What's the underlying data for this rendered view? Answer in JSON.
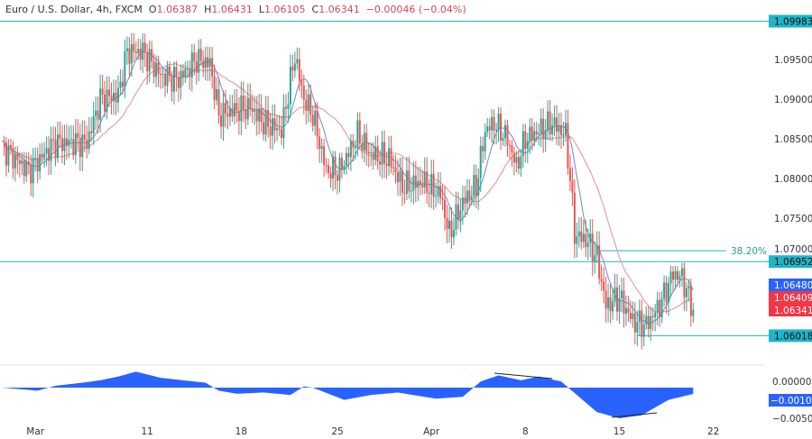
{
  "header": {
    "symbol": "Euro / U.S. Dollar, 4h, FXCM",
    "open_label": "O",
    "open": "1.06387",
    "high_label": "H",
    "high": "1.06431",
    "low_label": "L",
    "low": "1.06105",
    "close_label": "C",
    "close": "1.06341",
    "change": "−0.00046 (−0.04%)"
  },
  "colors": {
    "up": "#26a69a",
    "down": "#ef5350",
    "line": "#1fb5c9",
    "osc": "#2962ff",
    "ma_fast": "#6a8cc7",
    "ma_slow": "#e3a1a1"
  },
  "chart_data": {
    "type": "candlestick",
    "price_axis": {
      "ticks": [
        "1.09500",
        "1.09000",
        "1.08500",
        "1.08000",
        "1.07500",
        "1.07000"
      ],
      "range": [
        1.0585,
        1.1018
      ]
    },
    "x_ticks": [
      {
        "bar": 15,
        "label": "Mar"
      },
      {
        "bar": 65,
        "label": "11"
      },
      {
        "bar": 107,
        "label": "18"
      },
      {
        "bar": 150,
        "label": "25"
      },
      {
        "bar": 192,
        "label": "Apr"
      },
      {
        "bar": 234,
        "label": "8"
      },
      {
        "bar": 276,
        "label": "15"
      },
      {
        "bar": 318,
        "label": "22"
      }
    ],
    "close_keypoints": [
      [
        0,
        1.084
      ],
      [
        12,
        1.081
      ],
      [
        24,
        1.0845
      ],
      [
        38,
        1.0845
      ],
      [
        44,
        1.09
      ],
      [
        52,
        1.0905
      ],
      [
        56,
        1.096
      ],
      [
        63,
        1.096
      ],
      [
        71,
        1.093
      ],
      [
        79,
        1.0925
      ],
      [
        87,
        1.095
      ],
      [
        93,
        1.0945
      ],
      [
        97,
        1.088
      ],
      [
        103,
        1.0885
      ],
      [
        111,
        1.089
      ],
      [
        117,
        1.087
      ],
      [
        125,
        1.086
      ],
      [
        131,
        1.0955
      ],
      [
        135,
        1.09
      ],
      [
        139,
        1.088
      ],
      [
        145,
        1.081
      ],
      [
        151,
        1.081
      ],
      [
        159,
        1.0855
      ],
      [
        165,
        1.083
      ],
      [
        173,
        1.0825
      ],
      [
        179,
        1.079
      ],
      [
        188,
        1.0795
      ],
      [
        196,
        1.078
      ],
      [
        200,
        1.073
      ],
      [
        206,
        1.077
      ],
      [
        212,
        1.079
      ],
      [
        216,
        1.086
      ],
      [
        220,
        1.087
      ],
      [
        226,
        1.085
      ],
      [
        230,
        1.0815
      ],
      [
        234,
        1.085
      ],
      [
        240,
        1.086
      ],
      [
        246,
        1.087
      ],
      [
        252,
        1.0855
      ],
      [
        254,
        1.08
      ],
      [
        256,
        1.073
      ],
      [
        262,
        1.072
      ],
      [
        266,
        1.07
      ],
      [
        270,
        1.064
      ],
      [
        276,
        1.065
      ],
      [
        282,
        1.062
      ],
      [
        288,
        1.0615
      ],
      [
        294,
        1.064
      ],
      [
        300,
        1.068
      ],
      [
        304,
        1.0675
      ],
      [
        309,
        1.0634
      ]
    ],
    "levels": [
      {
        "price": 1.09983,
        "label": "1.09983"
      },
      {
        "price": 1.06952,
        "label": "1.06952"
      },
      {
        "price": 1.06018,
        "label": "1.06018"
      }
    ],
    "fib": {
      "label": "38.20%",
      "price": 1.0709
    },
    "price_tags": [
      {
        "label": "1.06480",
        "price": 1.0648,
        "color": "#2962ff"
      },
      {
        "label": "1.06409",
        "price": 1.06409,
        "color": "#f23645"
      },
      {
        "label": "1.06341",
        "price": 1.06341,
        "color": "#f23645"
      }
    ],
    "oscillator": {
      "ticks": [
        "0.00000",
        "-0.00500"
      ],
      "current": "-0.00103",
      "keypoints": [
        [
          0,
          0
        ],
        [
          16,
          -0.0005
        ],
        [
          24,
          0.0003
        ],
        [
          36,
          0.0008
        ],
        [
          44,
          0.0012
        ],
        [
          52,
          0.0018
        ],
        [
          60,
          0.0026
        ],
        [
          71,
          0.0016
        ],
        [
          81,
          0.0012
        ],
        [
          91,
          0.0008
        ],
        [
          97,
          -0.0005
        ],
        [
          105,
          -0.001
        ],
        [
          117,
          -0.0008
        ],
        [
          129,
          -0.0012
        ],
        [
          135,
          0.0002
        ],
        [
          139,
          0
        ],
        [
          153,
          -0.002
        ],
        [
          165,
          -0.0012
        ],
        [
          177,
          -0.0008
        ],
        [
          194,
          -0.0018
        ],
        [
          206,
          -0.0015
        ],
        [
          214,
          0.001
        ],
        [
          222,
          0.002
        ],
        [
          232,
          0.0012
        ],
        [
          240,
          0.0018
        ],
        [
          250,
          0.001
        ],
        [
          258,
          -0.0015
        ],
        [
          266,
          -0.004
        ],
        [
          276,
          -0.005
        ],
        [
          286,
          -0.0045
        ],
        [
          298,
          -0.002
        ],
        [
          309,
          -0.00103
        ]
      ]
    }
  }
}
